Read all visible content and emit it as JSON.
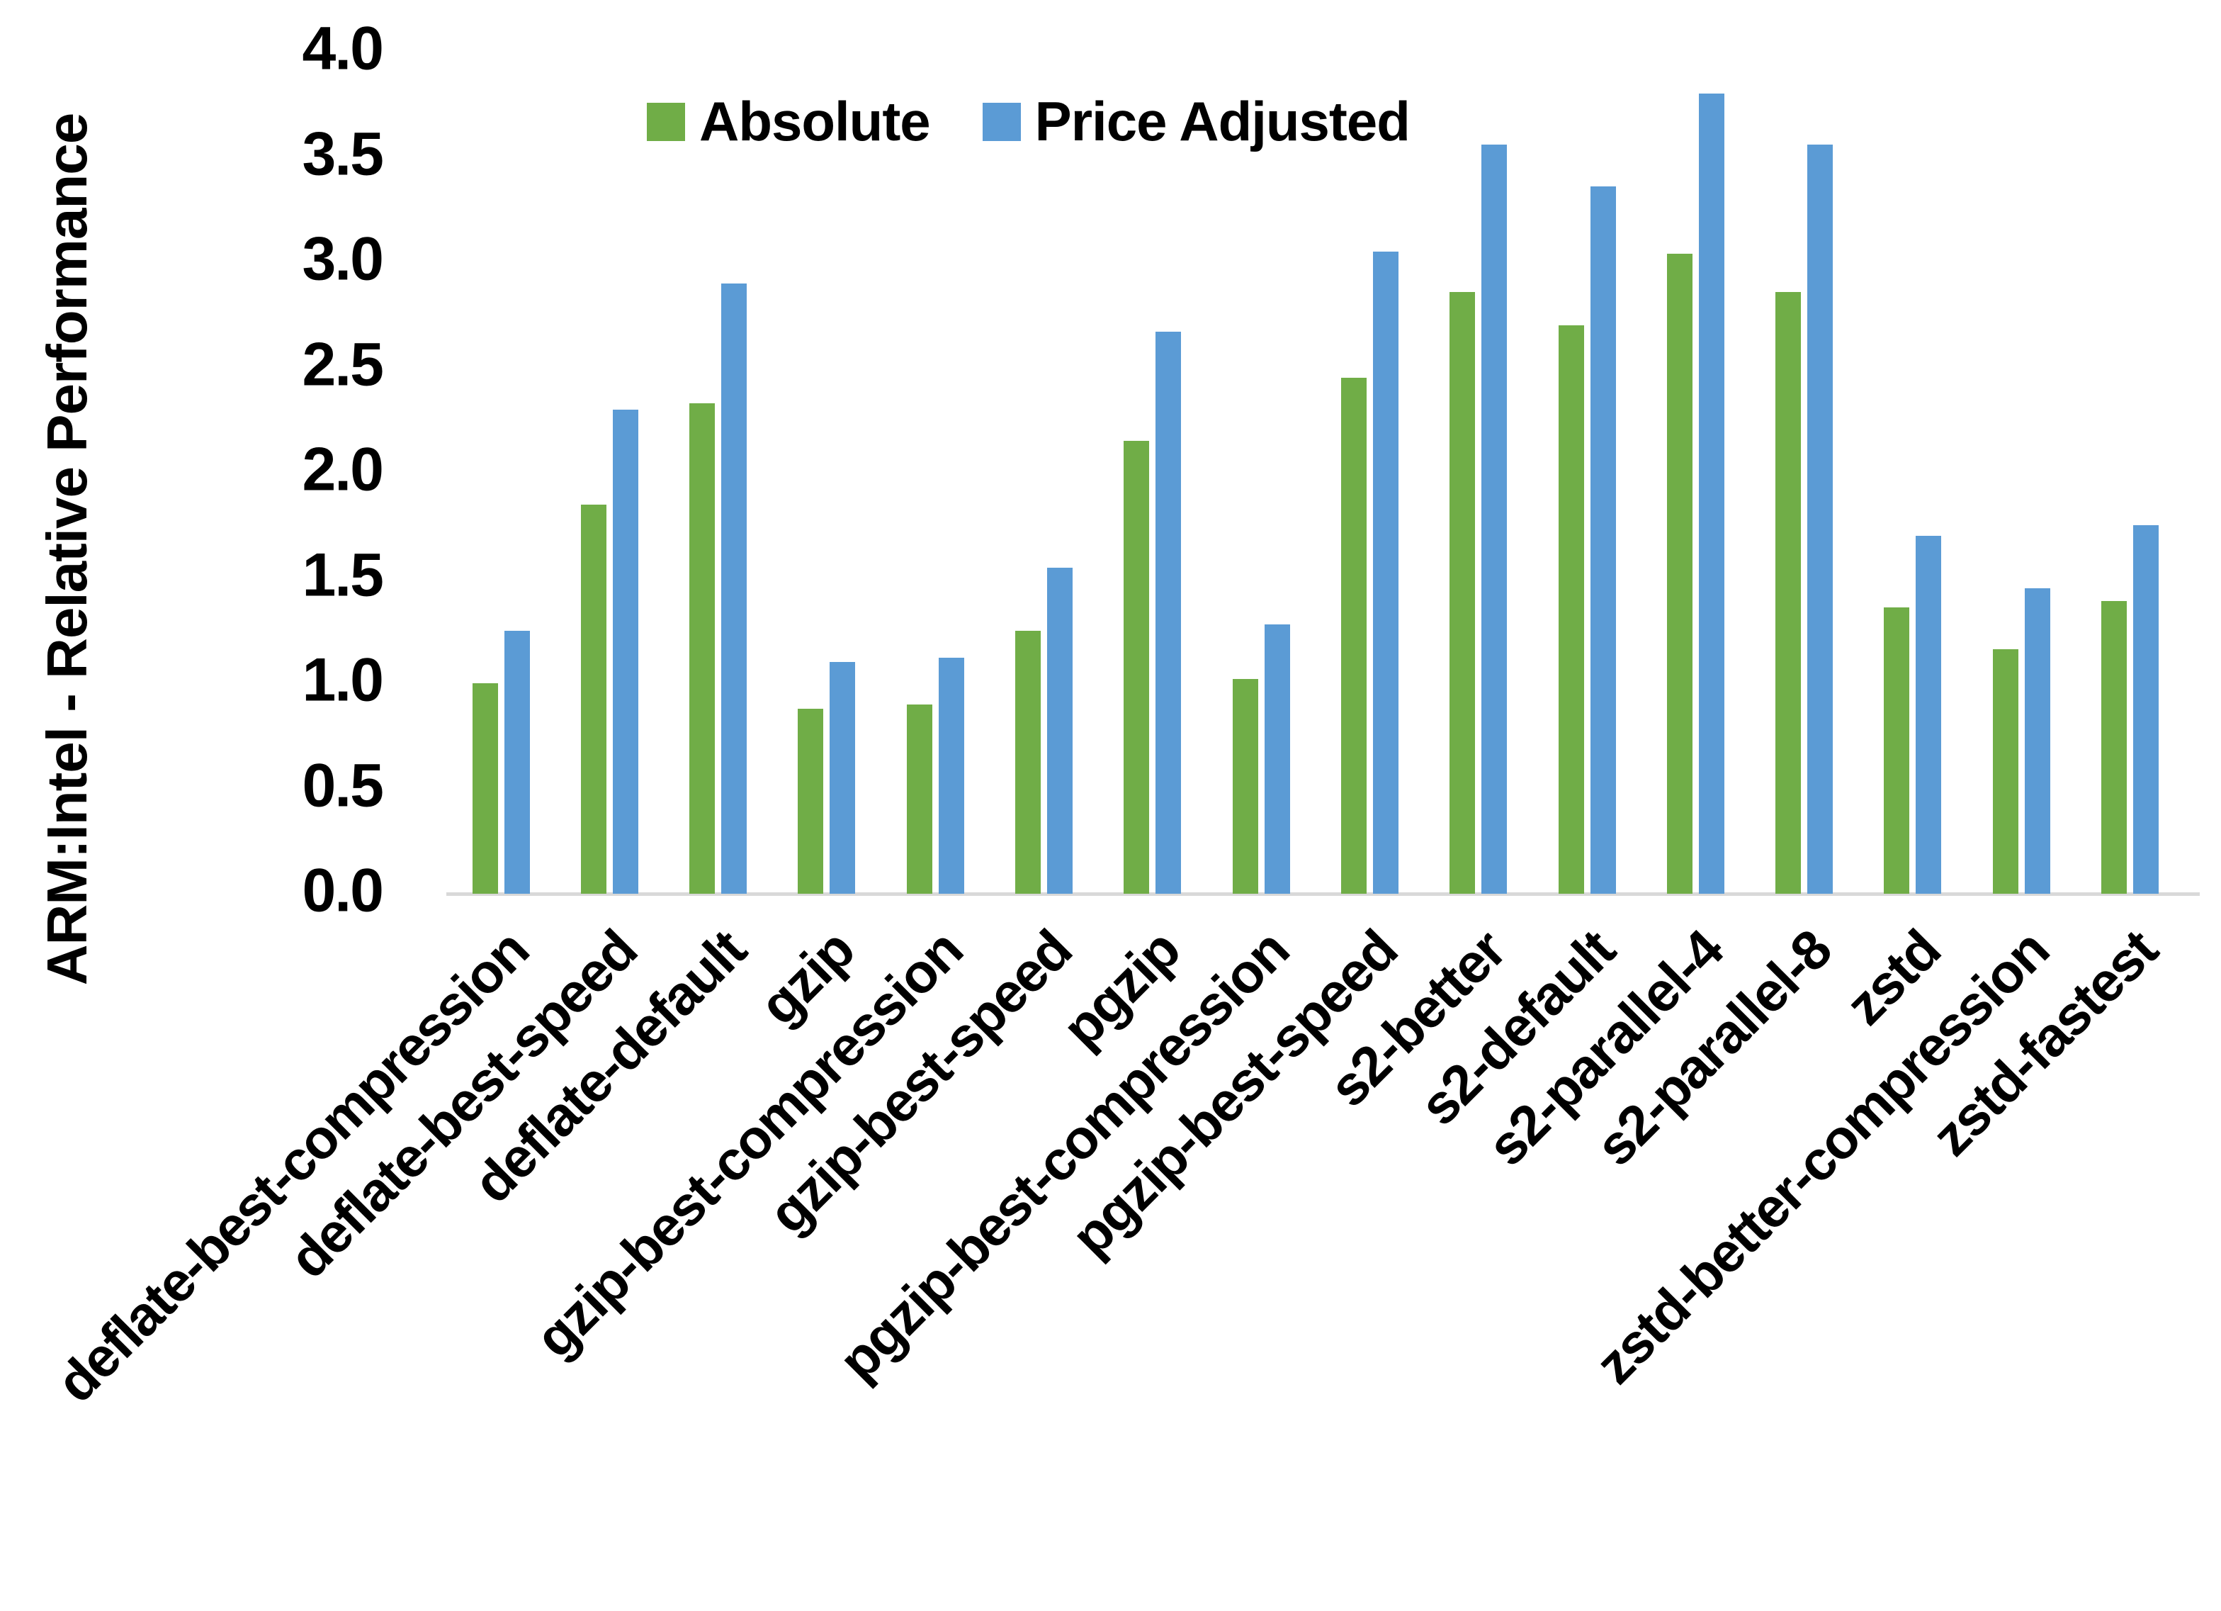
{
  "y_axis": {
    "title": "ARM:Intel - Relative Performance",
    "tick_labels": [
      "0.0",
      "0.5",
      "1.0",
      "1.5",
      "2.0",
      "2.5",
      "3.0",
      "3.5",
      "4.0"
    ]
  },
  "legend": {
    "items": [
      {
        "label": "Absolute",
        "color": "#70AD47"
      },
      {
        "label": "Price Adjusted",
        "color": "#5B9BD5"
      }
    ]
  },
  "figure": {
    "background": "#FFFFFF",
    "axis_line_color": "#D9D9D9",
    "border_right_color": "#000000",
    "border_bottom_color": "#000000"
  },
  "chart_data": {
    "type": "bar",
    "title": "",
    "xlabel": "",
    "ylabel": "ARM:Intel - Relative Performance",
    "ylim": [
      0.0,
      4.0
    ],
    "y_tick_step": 0.5,
    "grid": false,
    "legend_position": "top-center",
    "categories": [
      "deflate-best-compression",
      "deflate-best-speed",
      "deflate-default",
      "gzip",
      "gzip-best-compression",
      "gzip-best-speed",
      "pgzip",
      "pgzip-best-compression",
      "pgzip-best-speed",
      "s2-better",
      "s2-default",
      "s2-parallel-4",
      "s2-parallel-8",
      "zstd",
      "zstd-better-compression",
      "zstd-fastest"
    ],
    "series": [
      {
        "name": "Absolute",
        "color": "#70AD47",
        "values": [
          1.0,
          1.85,
          2.33,
          0.88,
          0.9,
          1.25,
          2.15,
          1.02,
          2.45,
          2.86,
          2.7,
          3.04,
          2.86,
          1.36,
          1.16,
          1.39
        ]
      },
      {
        "name": "Price Adjusted",
        "color": "#5B9BD5",
        "values": [
          1.25,
          2.3,
          2.9,
          1.1,
          1.12,
          1.55,
          2.67,
          1.28,
          3.05,
          3.56,
          3.36,
          3.8,
          3.56,
          1.7,
          1.45,
          1.75
        ]
      }
    ]
  }
}
